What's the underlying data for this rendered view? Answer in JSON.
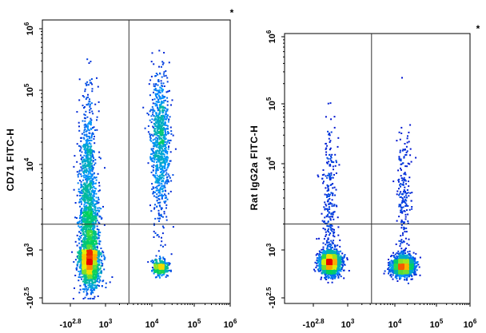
{
  "chart_data": [
    {
      "type": "scatter",
      "subtype": "flow-cytometry-density-plot",
      "ylabel": "CD71 FITC-H",
      "corner_mark": "*",
      "x_scale": "log",
      "y_scale": "log",
      "xlim": [
        -631,
        1000000
      ],
      "ylim": [
        -316,
        1000000
      ],
      "x_ticks": [
        {
          "label": "-10",
          "sup": "2.8"
        },
        {
          "label": "10",
          "sup": "3"
        },
        {
          "label": "10",
          "sup": "4"
        },
        {
          "label": "10",
          "sup": "5"
        },
        {
          "label": "10",
          "sup": "6"
        }
      ],
      "y_ticks": [
        {
          "label": "-10",
          "sup": "2.5"
        },
        {
          "label": "10",
          "sup": "3"
        },
        {
          "label": "10",
          "sup": "4"
        },
        {
          "label": "10",
          "sup": "5"
        },
        {
          "label": "10",
          "sup": "6"
        }
      ],
      "gate": {
        "x": 3200,
        "y": 2000
      },
      "populations": [
        {
          "x": 210,
          "y": 620,
          "spread_x": 0.14,
          "spread_y": 0.45,
          "weight": 0.36
        },
        {
          "x": 160,
          "y": 3000,
          "spread_x": 0.12,
          "spread_y": 0.7,
          "weight": 0.3
        },
        {
          "x": 15000,
          "y": 20000,
          "spread_x": 0.07,
          "spread_y": 0.45,
          "weight": 0.22
        },
        {
          "x": 15000,
          "y": 300,
          "spread_x": 0.06,
          "spread_y": 0.12,
          "weight": 0.07
        }
      ]
    },
    {
      "type": "scatter",
      "subtype": "flow-cytometry-density-plot",
      "ylabel": "Rat IgG2a FITC-H",
      "corner_mark": "*",
      "x_scale": "log",
      "y_scale": "log",
      "xlim": [
        -631,
        1000000
      ],
      "ylim": [
        -316,
        1000000
      ],
      "x_ticks": [
        {
          "label": "-10",
          "sup": "2.8"
        },
        {
          "label": "10",
          "sup": "3"
        },
        {
          "label": "10",
          "sup": "4"
        },
        {
          "label": "10",
          "sup": "5"
        },
        {
          "label": "10",
          "sup": "6"
        }
      ],
      "y_ticks": [
        {
          "label": "-10",
          "sup": "2.5"
        },
        {
          "label": "10",
          "sup": "3"
        },
        {
          "label": "10",
          "sup": "4"
        },
        {
          "label": "10",
          "sup": "5"
        },
        {
          "label": "10",
          "sup": "6"
        }
      ],
      "gate": {
        "x": 3200,
        "y": 2000
      },
      "populations": [
        {
          "x": 160,
          "y": 420,
          "spread_x": 0.14,
          "spread_y": 0.18,
          "weight": 0.5
        },
        {
          "x": 15000,
          "y": 330,
          "spread_x": 0.08,
          "spread_y": 0.15,
          "weight": 0.38
        },
        {
          "x": 150,
          "y": 3000,
          "spread_x": 0.1,
          "spread_y": 0.6,
          "weight": 0.07
        },
        {
          "x": 16000,
          "y": 4000,
          "spread_x": 0.05,
          "spread_y": 0.5,
          "weight": 0.05
        }
      ]
    }
  ]
}
